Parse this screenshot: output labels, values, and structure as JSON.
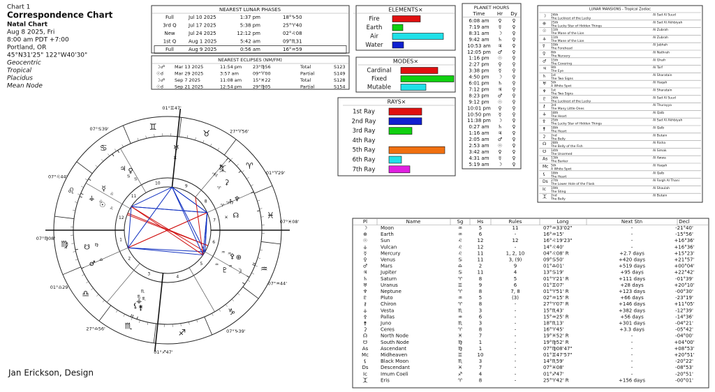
{
  "header": {
    "chart_number": "Chart 1",
    "title": "Correspondence Chart",
    "chart_type": "Natal Chart",
    "date": "Aug 8 2025, Fri",
    "time": "8:00 am  PDT +7:00",
    "place": "Portland, OR",
    "coordinates": "45°N31'25\" 122°W40'30\"",
    "options": [
      "Geocentric",
      "Tropical",
      "Placidus",
      "Mean Node"
    ]
  },
  "footer": "Jan Erickson, Design",
  "lunar_phases": {
    "title": "NEAREST LUNAR PHASES",
    "rows": [
      {
        "phase": "Full",
        "date": "Jul 10 2025",
        "time": "1:37 pm",
        "position": "18°♑50",
        "color": "#1fa01f"
      },
      {
        "phase": "3rd Q",
        "date": "Jul 17 2025",
        "time": "5:38 pm",
        "position": "25°♈40",
        "color": "#d01010"
      },
      {
        "phase": "New",
        "date": "Jul 24 2025",
        "time": "12:12 pm",
        "position": "02°♌08",
        "color": "#d01010"
      },
      {
        "phase": "1st Q",
        "date": "Aug 1 2025",
        "time": "5:42 am",
        "position": "09°♏31",
        "color": "#1030c0"
      },
      {
        "phase": "Full",
        "date": "Aug 9 2025",
        "time": "0:56 am",
        "position": "16°♒59",
        "color": "#10a0b0"
      }
    ]
  },
  "eclipses": {
    "title": "NEAREST ECLIPSES (NM/FM)",
    "rows": [
      {
        "icon": "☽☍",
        "date": "Mar 13 2025",
        "time": "11:54 pm",
        "position": "23°♍56",
        "color": "#1fa01f",
        "kind": "Total",
        "saros": "S123"
      },
      {
        "icon": "☉☌",
        "date": "Mar 29 2025",
        "time": "3:57 am",
        "position": "09°♈00",
        "color": "#d01010",
        "kind": "Partial",
        "saros": "S149"
      },
      {
        "icon": "☽☍",
        "date": "Sep 7 2025",
        "time": "11:08 am",
        "position": "15°♓22",
        "color": "#1030c0",
        "kind": "Total",
        "saros": "S128"
      },
      {
        "icon": "☉☌",
        "date": "Sep 21 2025",
        "time": "12:54 pm",
        "position": "29°♍05",
        "color": "#1fa01f",
        "kind": "Partial",
        "saros": "S154"
      }
    ]
  },
  "elements": {
    "title": "ELEMENTS×",
    "rows": [
      {
        "name": "Fire",
        "value": 40,
        "color": "#e01010"
      },
      {
        "name": "Earth",
        "value": 15,
        "color": "#10d010"
      },
      {
        "name": "Air",
        "value": 73,
        "color": "#20e0e8"
      },
      {
        "name": "Water",
        "value": 16,
        "color": "#1020d0"
      }
    ]
  },
  "modes": {
    "title": "MODES×",
    "rows": [
      {
        "name": "Cardinal",
        "value": 53,
        "color": "#e01010"
      },
      {
        "name": "Fixed",
        "value": 76,
        "color": "#10d010"
      },
      {
        "name": "Mutable",
        "value": 36,
        "color": "#20e0e8"
      }
    ]
  },
  "rays": {
    "title": "RAYS×",
    "rows": [
      {
        "name": "1st Ray",
        "value": 47,
        "color": "#e01010"
      },
      {
        "name": "2nd Ray",
        "value": 47,
        "color": "#1020d0"
      },
      {
        "name": "3rd Ray",
        "value": 33,
        "color": "#10d010"
      },
      {
        "name": "4th Ray",
        "value": 0,
        "color": "#e0e010"
      },
      {
        "name": "5th Ray",
        "value": 80,
        "color": "#f07010"
      },
      {
        "name": "6th Ray",
        "value": 18,
        "color": "#20e0e8"
      },
      {
        "name": "7th Ray",
        "value": 30,
        "color": "#e020e0"
      }
    ]
  },
  "planet_hours": {
    "title": "PLANET HOURS",
    "columns": [
      "Time",
      "Hr",
      "Dy"
    ],
    "rows": [
      [
        "6:08 am",
        "♀",
        "♀"
      ],
      [
        "7:19 am",
        "☿",
        "♀"
      ],
      [
        "8:31 am",
        "☽",
        "♀"
      ],
      [
        "9:42 am",
        "♄",
        "♀"
      ],
      [
        "10:53 am",
        "♃",
        "♀"
      ],
      [
        "12:05 pm",
        "♂",
        "♀"
      ],
      [
        "1:16 pm",
        "☉",
        "♀"
      ],
      [
        "2:27 pm",
        "♀",
        "♀"
      ],
      [
        "3:38 pm",
        "☿",
        "♀"
      ],
      [
        "4:50 pm",
        "☽",
        "♀"
      ],
      [
        "6:01 pm",
        "♄",
        "♀"
      ],
      [
        "7:12 pm",
        "♃",
        "♀"
      ],
      [
        "8:23 pm",
        "♂",
        "♀"
      ],
      [
        "9:12 pm",
        "☉",
        "♀"
      ],
      [
        "10:01 pm",
        "♀",
        "♀"
      ],
      [
        "10:50 pm",
        "☿",
        "♀"
      ],
      [
        "11:38 pm",
        "☽",
        "♀"
      ],
      [
        "0:27 am",
        "♄",
        "♀"
      ],
      [
        "1:16 am",
        "♃",
        "♀"
      ],
      [
        "2:05 am",
        "♂",
        "♀"
      ],
      [
        "2:53 am",
        "☉",
        "♀"
      ],
      [
        "3:42 am",
        "♀",
        "♀"
      ],
      [
        "4:31 am",
        "☿",
        "♀"
      ],
      [
        "5:19 am",
        "☽",
        "♀"
      ]
    ]
  },
  "lunar_mansions": {
    "title": "LUNAR MANSIONS - Tropical Zodiac",
    "rows": [
      {
        "glyph": "☽",
        "number": "24th",
        "name": "The Luckiest of the Lucky",
        "arabic": "Al Sad Al Suud"
      },
      {
        "glyph": "⊕",
        "number": "25th",
        "name": "The Lucky Star of Hidden Things",
        "arabic": "Al Sad Al Akhbiyah"
      },
      {
        "glyph": "☉",
        "number": "11th",
        "name": "The Mane of the Lion",
        "arabic": "Al Zubrah"
      },
      {
        "glyph": "⚶",
        "number": "11th",
        "name": "The Mane of the Lion",
        "arabic": "Al Zubrah"
      },
      {
        "glyph": "☿",
        "number": "10th",
        "name": "The Forehead",
        "arabic": "Al Jabhah"
      },
      {
        "glyph": "♀",
        "number": "8th",
        "name": "The Nursery",
        "arabic": "Al Nathrah"
      },
      {
        "glyph": "♂",
        "number": "15th",
        "name": "The Covering",
        "arabic": "Al Ghafr"
      },
      {
        "glyph": "♃",
        "number": "9th",
        "name": "The Eye",
        "arabic": "Al Tarf"
      },
      {
        "glyph": "♄",
        "number": "1st",
        "name": "The Two Signs",
        "arabic": "Al Sharatain"
      },
      {
        "glyph": "♅",
        "number": "5th",
        "name": "A White Spot",
        "arabic": "Al Haqah"
      },
      {
        "glyph": "♆",
        "number": "1st",
        "name": "The Two Signs",
        "arabic": "Al Sharatain"
      },
      {
        "glyph": "♇",
        "number": "24th",
        "name": "The Luckiest of the Lucky",
        "arabic": "Al Sad Al Suud"
      },
      {
        "glyph": "⚷",
        "number": "3rd",
        "name": "The Many Little Ones",
        "arabic": "Al Thurayya"
      },
      {
        "glyph": "⚶",
        "number": "18th",
        "name": "The Heart",
        "arabic": "Al Qalb"
      },
      {
        "glyph": "⚴",
        "number": "25th",
        "name": "The Lucky Star of Hidden Things",
        "arabic": "Al Sad Al Akhbiyah"
      },
      {
        "glyph": "⚵",
        "number": "18th",
        "name": "The Heart",
        "arabic": "Al Qalb"
      },
      {
        "glyph": "⚳",
        "number": "2nd",
        "name": "The Belly",
        "arabic": "Al Butain"
      },
      {
        "glyph": "☊",
        "number": "28th",
        "name": "The Belly of the Fish",
        "arabic": "Al Risha"
      },
      {
        "glyph": "☋",
        "number": "14th",
        "name": "The Unarmed",
        "arabic": "Al Simak"
      },
      {
        "glyph": "As",
        "number": "13th",
        "name": "The Barker",
        "arabic": "Al Awwa"
      },
      {
        "glyph": "Mc",
        "number": "5th",
        "name": "A White Spot",
        "arabic": "Al Haqah"
      },
      {
        "glyph": "⚸",
        "number": "18th",
        "name": "The Heart",
        "arabic": "Al Qalb"
      },
      {
        "glyph": "Ds",
        "number": "27th",
        "name": "The Lower Hole of the Flask",
        "arabic": "Al Fargh Al Thani"
      },
      {
        "glyph": "Ic",
        "number": "19th",
        "name": "The Sting",
        "arabic": "Al Shaulah"
      },
      {
        "glyph": "⯰",
        "number": "2nd",
        "name": "The Belly",
        "arabic": "Al Butain"
      }
    ]
  },
  "planets": {
    "columns": [
      "Pl",
      "Name",
      "Sg",
      "Hs",
      "Rules",
      "Long",
      "Next Stn",
      "Decl"
    ],
    "rows": [
      {
        "glyph": "☽",
        "name": "Moon",
        "sign": "♒",
        "house": "5",
        "rules": "11",
        "longitude": "07°♒33'02\"",
        "next_station": "-",
        "declination": "-21°40'",
        "color": "#8a7a10",
        "sign_color": "#10a0b0"
      },
      {
        "glyph": "⊕",
        "name": "Earth",
        "sign": "♒",
        "house": "6",
        "rules": "-",
        "longitude": "16°♒15'",
        "next_station": "-",
        "declination": "-15°56'",
        "color": "#10a010",
        "sign_color": "#10a0b0"
      },
      {
        "glyph": "☉",
        "name": "Sun",
        "sign": "♌",
        "house": "12",
        "rules": "12",
        "longitude": "16°♌19'23\"",
        "next_station": "-",
        "declination": "+16°36'",
        "color": "#e08010",
        "sign_color": "#d01010"
      },
      {
        "glyph": "⚶",
        "name": "Vulcan",
        "sign": "♌",
        "house": "12",
        "rules": "-",
        "longitude": "14°♌40'",
        "next_station": "-",
        "declination": "+16°36'",
        "color": "#d01010",
        "sign_color": "#d01010"
      },
      {
        "glyph": "☿",
        "name": "Mercury",
        "sign": "♌",
        "house": "11",
        "rules": "1, 2, 10",
        "longitude": "04°♌08' R",
        "next_station": "+2.7 days",
        "declination": "+15°23'",
        "color": "#c01040",
        "sign_color": "#d01010"
      },
      {
        "glyph": "♀",
        "name": "Venus",
        "sign": "♋",
        "house": "11",
        "rules": "3, (9)",
        "longitude": "09°♋50'",
        "next_station": "+420 days",
        "declination": "+21°57'",
        "color": "#1040c0",
        "sign_color": "#1030c0"
      },
      {
        "glyph": "♂",
        "name": "Mars",
        "sign": "♎",
        "house": "2",
        "rules": "9",
        "longitude": "01°♎01'",
        "next_station": "+519 days",
        "declination": "+00°04'",
        "color": "#d01010",
        "sign_color": "#10a0b0"
      },
      {
        "glyph": "♃",
        "name": "Jupiter",
        "sign": "♋",
        "house": "11",
        "rules": "4",
        "longitude": "13°♋19'",
        "next_station": "+95 days",
        "declination": "+22°42'",
        "color": "#a030a0",
        "sign_color": "#1030c0"
      },
      {
        "glyph": "♄",
        "name": "Saturn",
        "sign": "♈",
        "house": "8",
        "rules": "5",
        "longitude": "01°♈21' R",
        "next_station": "+111 days",
        "declination": "-01°39'",
        "color": "#b01010",
        "sign_color": "#d01010"
      },
      {
        "glyph": "♅",
        "name": "Uranus",
        "sign": "♊",
        "house": "9",
        "rules": "6",
        "longitude": "01°♊07'",
        "next_station": "+28 days",
        "declination": "+20°10'",
        "color": "#1030c0",
        "sign_color": "#10a0b0"
      },
      {
        "glyph": "♆",
        "name": "Neptune",
        "sign": "♈",
        "house": "8",
        "rules": "7, 8",
        "longitude": "01°♈51' R",
        "next_station": "+123 days",
        "declination": "-00°30'",
        "color": "#1060c0",
        "sign_color": "#d01010"
      },
      {
        "glyph": "♇",
        "name": "Pluto",
        "sign": "♒",
        "house": "5",
        "rules": "(3)",
        "longitude": "02°♒15' R",
        "next_station": "+66 days",
        "declination": "-23°19'",
        "color": "#10a0b0",
        "sign_color": "#10a0b0"
      },
      {
        "glyph": "⚷",
        "name": "Chiron",
        "sign": "♈",
        "house": "8",
        "rules": "-",
        "longitude": "27°♈07' R",
        "next_station": "+146 days",
        "declination": "+11°05'",
        "color": "#d01010",
        "sign_color": "#d01010"
      },
      {
        "glyph": "⚶",
        "name": "Vesta",
        "sign": "♏",
        "house": "3",
        "rules": "-",
        "longitude": "15°♏43'",
        "next_station": "+382 days",
        "declination": "-12°39'",
        "color": "#111111",
        "sign_color": "#1030c0"
      },
      {
        "glyph": "⚴",
        "name": "Pallas",
        "sign": "♒",
        "house": "6",
        "rules": "-",
        "longitude": "15°♒25' R",
        "next_station": "+56 days",
        "declination": "-14°36'",
        "color": "#111111",
        "sign_color": "#10a0b0"
      },
      {
        "glyph": "⚵",
        "name": "Juno",
        "sign": "♏",
        "house": "3",
        "rules": "-",
        "longitude": "18°♏13'",
        "next_station": "+301 days",
        "declination": "-04°21'",
        "color": "#111111",
        "sign_color": "#1030c0"
      },
      {
        "glyph": "⚳",
        "name": "Ceres",
        "sign": "♈",
        "house": "8",
        "rules": "-",
        "longitude": "16°♈45'",
        "next_station": "+3.3 days",
        "declination": "-05°42'",
        "color": "#111111",
        "sign_color": "#d01010"
      },
      {
        "glyph": "☊",
        "name": "North Node",
        "sign": "♓",
        "house": "7",
        "rules": "-",
        "longitude": "19°♓52' R",
        "next_station": "-",
        "declination": "-04°00'",
        "color": "#111111",
        "sign_color": "#1030c0"
      },
      {
        "glyph": "☋",
        "name": "South Node",
        "sign": "♍",
        "house": "1",
        "rules": "-",
        "longitude": "19°♍52' R",
        "next_station": "-",
        "declination": "+04°00'",
        "color": "#111111",
        "sign_color": "#10a010"
      },
      {
        "glyph": "As",
        "name": "Ascendant",
        "sign": "♍",
        "house": "1",
        "rules": "-",
        "longitude": "07°♍08'47\"",
        "next_station": "-",
        "declination": "+08°53'",
        "color": "#111111",
        "sign_color": "#10a010"
      },
      {
        "glyph": "Mc",
        "name": "Midheaven",
        "sign": "♊",
        "house": "10",
        "rules": "-",
        "longitude": "01°♊47'57\"",
        "next_station": "-",
        "declination": "+20°51'",
        "color": "#111111",
        "sign_color": "#10a0b0"
      },
      {
        "glyph": "⚸",
        "name": "Black Moon",
        "sign": "♏",
        "house": "3",
        "rules": "-",
        "longitude": "14°♏59'",
        "next_station": "-",
        "declination": "-20°22'",
        "color": "#111111",
        "sign_color": "#1030c0"
      },
      {
        "glyph": "Ds",
        "name": "Descendant",
        "sign": "♓",
        "house": "7",
        "rules": "-",
        "longitude": "07°♓08'",
        "next_station": "-",
        "declination": "-08°53'",
        "color": "#111111",
        "sign_color": "#1030c0"
      },
      {
        "glyph": "Ic",
        "name": "Imum Coeli",
        "sign": "♐",
        "house": "4",
        "rules": "-",
        "longitude": "01°♐47'",
        "next_station": "-",
        "declination": "-20°51'",
        "color": "#111111",
        "sign_color": "#d01010"
      },
      {
        "glyph": "⯰",
        "name": "Eris",
        "sign": "♈",
        "house": "8",
        "rules": "-",
        "longitude": "25°♈42' R",
        "next_station": "+156 days",
        "declination": "-00°01'",
        "color": "#111111",
        "sign_color": "#d01010"
      }
    ]
  },
  "wheel": {
    "zodiac": [
      "♈",
      "♉",
      "♊",
      "♋",
      "♌",
      "♍",
      "♎",
      "♏",
      "♐",
      "♑",
      "♒",
      "♓"
    ],
    "sign_colors": [
      "#d01010",
      "#10a010",
      "#10a0b0",
      "#1030c0",
      "#d01010",
      "#10a010",
      "#10a0b0",
      "#1030c0",
      "#d01010",
      "#10a010",
      "#10a0b0",
      "#1030c0"
    ],
    "house_numbers": [
      "1",
      "2",
      "3",
      "4",
      "5",
      "6",
      "7",
      "8",
      "9",
      "10",
      "11",
      "12"
    ],
    "cusps": [
      "07°♍08'",
      "01°♎29'",
      "27°♎56'",
      "01°♐47'",
      "07°♑39'",
      "07°♒44'",
      "07°♓08'",
      "01°♈29'",
      "27°♈56'",
      "01°♊47'",
      "07°♋39'",
      "07°♌44'"
    ]
  }
}
